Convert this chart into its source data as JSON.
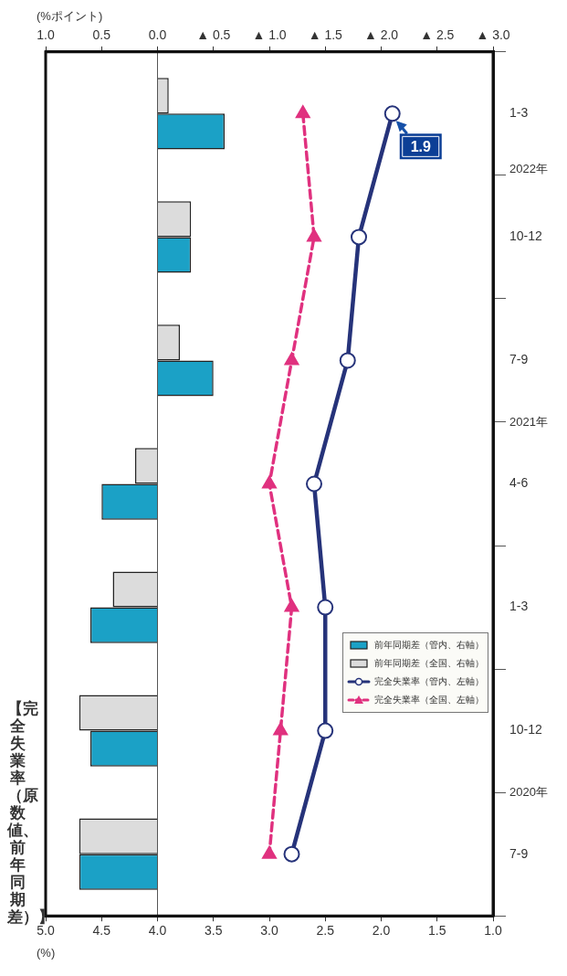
{
  "chart_data": {
    "type": "bar",
    "orientation": "horizontal",
    "title": "【完全失業率（原数値、前年同期差）】",
    "xlabel": "(%)",
    "x2label": "(%ポイント)",
    "categories": [
      "1-3",
      "10-12",
      "7-9",
      "4-6",
      "1-3",
      "10-12",
      "7-9"
    ],
    "series": [
      {
        "name": "前年同期差（管内、右軸）",
        "type": "bar",
        "axis": "x2",
        "color": "#1ba1c6",
        "values": [
          -0.6,
          -0.3,
          -0.5,
          0.5,
          0.6,
          0.6,
          0.7
        ]
      },
      {
        "name": "前年同期差（全国、右軸）",
        "type": "bar",
        "axis": "x2",
        "color": "#dcdcdc",
        "values": [
          -0.1,
          -0.3,
          -0.2,
          0.2,
          0.4,
          0.7,
          0.7
        ]
      },
      {
        "name": "完全失業率（管内、左軸）",
        "type": "line",
        "color": "#26337a",
        "marker": "circle",
        "line_style": "solid",
        "values": [
          1.9,
          2.2,
          2.3,
          2.6,
          2.5,
          2.5,
          2.8
        ]
      },
      {
        "name": "完全失業率（全国、左軸）",
        "type": "line",
        "color": "#e0317f",
        "marker": "triangle",
        "line_style": "dashed",
        "values": [
          2.7,
          2.6,
          2.8,
          3.0,
          2.8,
          2.9,
          3.0
        ]
      }
    ],
    "xlim": [
      5.0,
      1.0
    ],
    "xticks": [
      {
        "value": 5,
        "label": "5.0"
      },
      {
        "value": 4.5,
        "label": "4.5"
      },
      {
        "value": 4,
        "label": "4.0"
      },
      {
        "value": 3.5,
        "label": "3.5"
      },
      {
        "value": 3,
        "label": "3.0"
      },
      {
        "value": 2.5,
        "label": "2.5"
      },
      {
        "value": 2,
        "label": "2.0"
      },
      {
        "value": 1.5,
        "label": "1.5"
      },
      {
        "value": 1,
        "label": "1.0"
      }
    ],
    "x2lim": [
      1.0,
      -3.0
    ],
    "x2ticks": [
      {
        "value": 1,
        "label": "1.0"
      },
      {
        "value": 0.5,
        "label": "0.5"
      },
      {
        "value": 0,
        "label": "0.0"
      },
      {
        "value": -0.5,
        "label": "▲ 0.5"
      },
      {
        "value": -1,
        "label": "▲ 1.0"
      },
      {
        "value": -1.5,
        "label": "▲ 1.5"
      },
      {
        "value": -2,
        "label": "▲ 2.0"
      },
      {
        "value": -2.5,
        "label": "▲ 2.5"
      },
      {
        "value": -3,
        "label": "▲ 3.0"
      }
    ],
    "annotations": [
      {
        "text": "1.9",
        "x": 1.9,
        "y": "1-3"
      },
      "2022年",
      "2021年",
      "2020年"
    ],
    "ref_lines": [
      {
        "axis": "x2",
        "value": 0,
        "color": "#555555"
      }
    ],
    "grid": false,
    "legend": "bottom right"
  }
}
